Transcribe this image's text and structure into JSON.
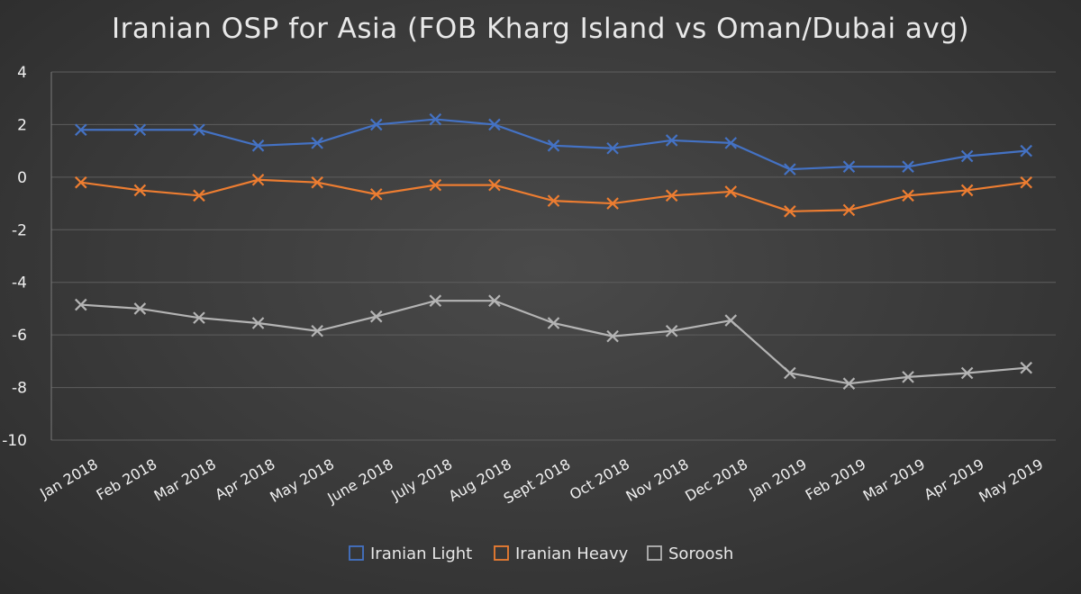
{
  "chart_data": {
    "type": "line",
    "title": "Iranian OSP for Asia (FOB Kharg Island vs Oman/Dubai avg)",
    "xlabel": "",
    "ylabel": "",
    "ylim": [
      -10,
      4
    ],
    "yticks": [
      4,
      2,
      0,
      -2,
      -4,
      -6,
      -8,
      -10
    ],
    "grid": true,
    "legend_position": "bottom",
    "categories": [
      "Jan 2018",
      "Feb 2018",
      "Mar 2018",
      "Apr 2018",
      "May 2018",
      "June 2018",
      "July 2018",
      "Aug 2018",
      "Sept 2018",
      "Oct 2018",
      "Nov 2018",
      "Dec 2018",
      "Jan 2019",
      "Feb 2019",
      "Mar 2019",
      "Apr 2019",
      "May 2019"
    ],
    "series": [
      {
        "name": "Iranian Light",
        "color": "#4472c4",
        "values": [
          1.8,
          1.8,
          1.8,
          1.2,
          1.3,
          2.0,
          2.2,
          2.0,
          1.2,
          1.1,
          1.4,
          1.3,
          0.3,
          0.4,
          0.4,
          0.8,
          1.0
        ]
      },
      {
        "name": "Iranian Heavy",
        "color": "#ed7d31",
        "values": [
          -0.2,
          -0.5,
          -0.7,
          -0.1,
          -0.2,
          -0.65,
          -0.3,
          -0.3,
          -0.9,
          -1.0,
          -0.7,
          -0.55,
          -1.3,
          -1.25,
          -0.7,
          -0.5,
          -0.2
        ]
      },
      {
        "name": "Soroosh",
        "color": "#b4b4b4",
        "values": [
          -4.85,
          -5.0,
          -5.35,
          -5.55,
          -5.85,
          -5.3,
          -4.7,
          -4.7,
          -5.55,
          -6.05,
          -5.85,
          -5.45,
          -7.45,
          -7.85,
          -7.6,
          -7.45,
          -7.25
        ]
      }
    ]
  }
}
